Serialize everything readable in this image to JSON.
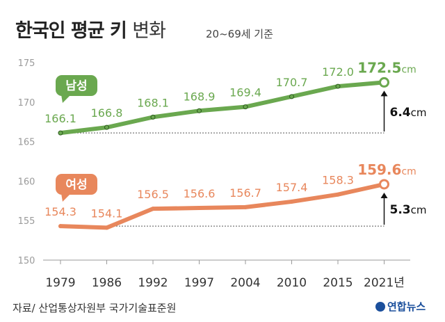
{
  "header": {
    "title_bold": "한국인 평균 키",
    "title_light": "변화",
    "subtitle": "20~69세 기준"
  },
  "footer": {
    "source": "자료/ 산업통상자원부 국가기술표준원",
    "brand": "연합뉴스"
  },
  "chart_data": {
    "type": "line",
    "categories": [
      "1979",
      "1986",
      "1992",
      "1997",
      "2004",
      "2010",
      "2015",
      "2021년"
    ],
    "ylim": [
      150,
      175
    ],
    "yticks": [
      150,
      155,
      160,
      165,
      170,
      175
    ],
    "series": [
      {
        "name": "남성",
        "color": "#6aa84f",
        "values": [
          166.1,
          166.8,
          168.1,
          168.9,
          169.4,
          170.7,
          172.0,
          172.5
        ],
        "labels": [
          "166.1",
          "166.8",
          "168.1",
          "168.9",
          "169.4",
          "170.7",
          "172.0",
          "172.5"
        ],
        "last_unit": "cm",
        "change": "6.4",
        "change_unit": "cm"
      },
      {
        "name": "여성",
        "color": "#e8875c",
        "values": [
          154.3,
          154.1,
          156.5,
          156.6,
          156.7,
          157.4,
          158.3,
          159.6
        ],
        "labels": [
          "154.3",
          "154.1",
          "156.5",
          "156.6",
          "156.7",
          "157.4",
          "158.3",
          "159.6"
        ],
        "last_unit": "cm",
        "change": "5.3",
        "change_unit": "cm"
      }
    ]
  }
}
